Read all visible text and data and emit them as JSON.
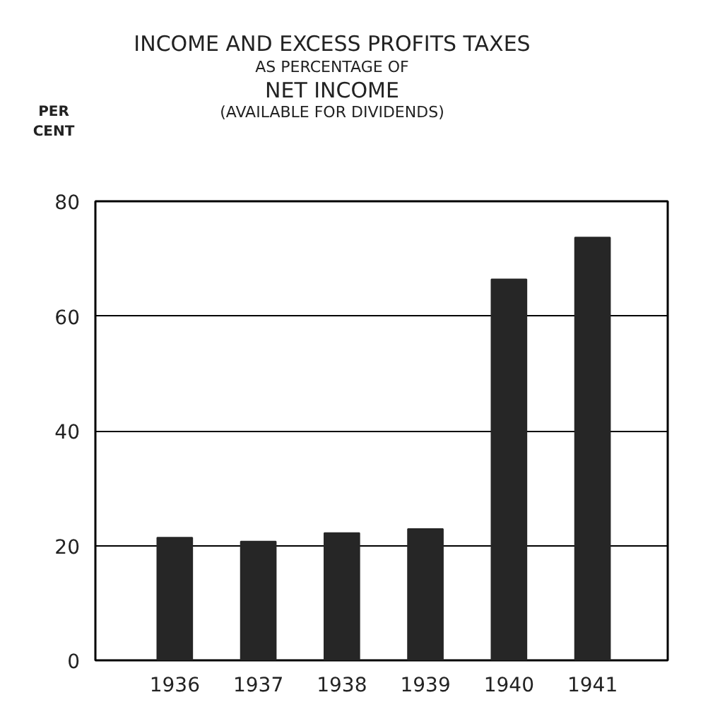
{
  "chart_data": {
    "type": "bar",
    "title": "INCOME AND EXCESS PROFITS TAXES",
    "subtitle": "AS PERCENTAGE OF\nNET INCOME\n(AVAILABLE FOR DIVIDENDS)",
    "ylabel": "PER\nCENT",
    "categories": [
      "1936",
      "1937",
      "1938",
      "1939",
      "1940",
      "1941"
    ],
    "values": [
      21.4,
      20.7,
      22.2,
      22.9,
      66.4,
      73.7
    ],
    "color": "#262626",
    "ylim": [
      0,
      80
    ],
    "yticks": [
      0,
      20,
      40,
      60,
      80
    ],
    "grid": "y"
  }
}
